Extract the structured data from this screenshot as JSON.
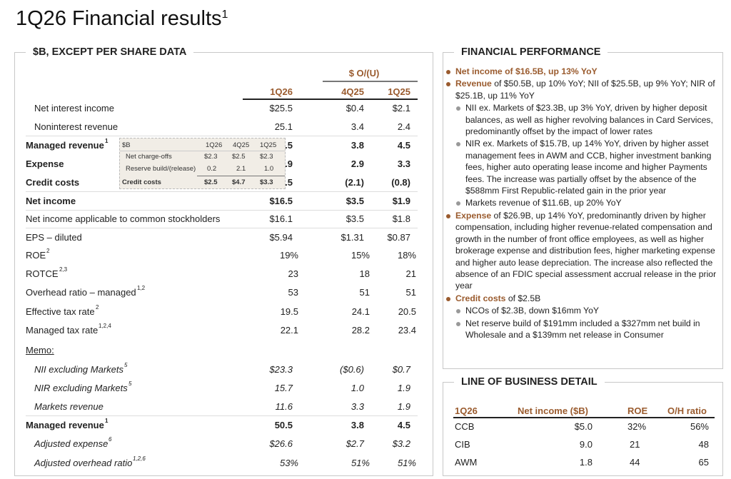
{
  "title": "1Q26 Financial results",
  "title_sup": "1",
  "left": {
    "heading": "$B, EXCEPT PER SHARE DATA",
    "ou_label": "$ O/(U)",
    "cols": [
      "1Q26",
      "4Q25",
      "1Q25"
    ],
    "rows": [
      {
        "label": "Net interest income",
        "sup": "",
        "v": [
          "$25.5",
          "$0.4",
          "$2.1"
        ]
      },
      {
        "label": "Noninterest revenue",
        "sup": "",
        "v": [
          "25.1",
          "3.4",
          "2.4"
        ]
      },
      {
        "label": "Managed revenue",
        "sup": "1",
        "v": [
          "50.5",
          "3.8",
          "4.5"
        ]
      },
      {
        "label": "Expense",
        "sup": "",
        "v": [
          "26.9",
          "2.9",
          "3.3"
        ]
      },
      {
        "label": "Credit costs",
        "sup": "",
        "v": [
          "2.5",
          "(2.1)",
          "(0.8)"
        ]
      },
      {
        "label": "Net income",
        "sup": "",
        "v": [
          "$16.5",
          "$3.5",
          "$1.9"
        ]
      },
      {
        "label": "Net income applicable to common stockholders",
        "sup": "",
        "v": [
          "$16.1",
          "$3.5",
          "$1.8"
        ]
      },
      {
        "label": "EPS – diluted",
        "sup": "",
        "v": [
          "$5.94",
          "$1.31",
          "$0.87"
        ]
      },
      {
        "label": "ROE",
        "sup": "2",
        "v": [
          "19%",
          "15%",
          "18%"
        ]
      },
      {
        "label": "ROTCE",
        "sup": "2,3",
        "v": [
          "23",
          "18",
          "21"
        ]
      },
      {
        "label": "Overhead ratio – managed",
        "sup": "1,2",
        "v": [
          "53",
          "51",
          "51"
        ]
      },
      {
        "label": "Effective tax rate",
        "sup": "2",
        "v": [
          "19.5",
          "24.1",
          "20.5"
        ]
      },
      {
        "label": "Managed tax rate",
        "sup": "1,2,4",
        "v": [
          "22.1",
          "28.2",
          "23.4"
        ]
      },
      {
        "label": "Memo:",
        "sup": "",
        "v": [
          "",
          "",
          ""
        ]
      },
      {
        "label": "NII excluding Markets",
        "sup": "5",
        "v": [
          "$23.3",
          "($0.6)",
          "$0.7"
        ]
      },
      {
        "label": "NIR excluding Markets",
        "sup": "5",
        "v": [
          "15.7",
          "1.0",
          "1.9"
        ]
      },
      {
        "label": "Markets revenue",
        "sup": "",
        "v": [
          "11.6",
          "3.3",
          "1.9"
        ]
      },
      {
        "label": "Managed revenue",
        "sup": "1",
        "v": [
          "50.5",
          "3.8",
          "4.5"
        ]
      },
      {
        "label": "Adjusted expense",
        "sup": "6",
        "v": [
          "$26.6",
          "$2.7",
          "$3.2"
        ]
      },
      {
        "label": "Adjusted overhead ratio",
        "sup": "1,2,6",
        "v": [
          "53%",
          "51%",
          "51%"
        ]
      }
    ],
    "inset": {
      "unit": "$B",
      "cols": [
        "1Q26",
        "4Q25",
        "1Q25"
      ],
      "rows": [
        {
          "label": "Net charge-offs",
          "v": [
            "$2.3",
            "$2.5",
            "$2.3"
          ]
        },
        {
          "label": "Reserve build/(release)",
          "v": [
            "0.2",
            "2.1",
            "1.0"
          ]
        },
        {
          "label": "Credit costs",
          "v": [
            "$2.5",
            "$4.7",
            "$3.3"
          ]
        }
      ]
    }
  },
  "perf": {
    "heading": "FINANCIAL PERFORMANCE",
    "b1": "Net income of $16.5B, up 13% YoY",
    "b2_lead": "Revenue",
    "b2": " of $50.5B, up 10% YoY; NII of $25.5B, up 9% YoY; NIR of $25.1B, up 11% YoY",
    "b2_subs": [
      "NII ex. Markets of $23.3B, up 3% YoY, driven by higher deposit balances, as well as higher revolving balances in Card Services, predominantly offset by the impact of lower rates",
      "NIR ex. Markets of $15.7B, up 14% YoY, driven by higher asset management fees in AWM and CCB, higher investment banking fees, higher auto operating lease income and higher Payments fees. The increase was partially offset by the absence of the $588mm First Republic-related gain in the prior year",
      "Markets revenue of $11.6B, up 20% YoY"
    ],
    "b3_lead": "Expense",
    "b3": " of $26.9B, up 14% YoY, predominantly driven by higher compensation, including higher revenue-related compensation and growth in the number of front office employees, as well as higher brokerage expense and distribution fees, higher marketing expense and higher auto lease depreciation. The increase also reflected the absence of an FDIC special assessment accrual release in the prior year",
    "b4_lead": "Credit costs",
    "b4": " of $2.5B",
    "b4_subs": [
      "NCOs of $2.3B, down $16mm YoY",
      "Net reserve build of $191mm included a $327mm net build in Wholesale and a $139mm net release in Consumer"
    ]
  },
  "lob": {
    "heading": "LINE OF BUSINESS DETAIL",
    "cols": [
      "1Q26",
      "Net income ($B)",
      "ROE",
      "O/H ratio"
    ],
    "rows": [
      [
        "CCB",
        "$5.0",
        "32%",
        "56%"
      ],
      [
        "CIB",
        "9.0",
        "21",
        "48"
      ],
      [
        "AWM",
        "1.8",
        "44",
        "65"
      ]
    ]
  }
}
